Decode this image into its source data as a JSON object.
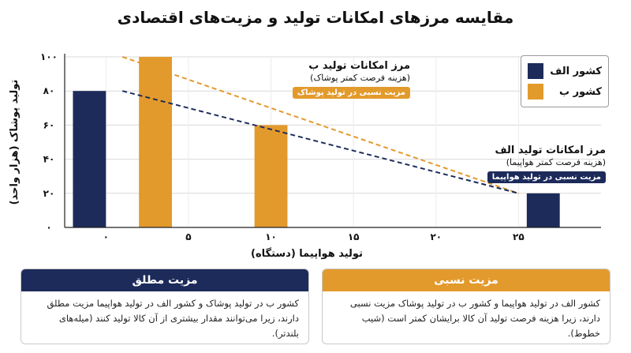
{
  "title": "مقایسه مرزهای امکانات تولید و مزیت‌های اقتصادی",
  "colors": {
    "country_a": "#1c2b5a",
    "country_b": "#e39a2c"
  },
  "legend": [
    {
      "label": "کشور الف",
      "color": "#1c2b5a"
    },
    {
      "label": "کشور ب",
      "color": "#e39a2c"
    }
  ],
  "annotations": {
    "b": {
      "title": "مرز امکانات تولید ب",
      "subtitle": "(هزینه فرصت کمتر پوشاک)",
      "tag": "مزیت نسبی در تولید پوشاک"
    },
    "a": {
      "title": "مرز امکانات تولید الف",
      "subtitle": "(هزینه فرصت کمتر هواپیما)",
      "tag": "مزیت نسبی در تولید هواپیما"
    }
  },
  "boxes": {
    "absolute": {
      "title": "مزیت مطلق",
      "text": "کشور ب در تولید پوشاک و کشور الف در تولید هواپیما مزیت مطلق دارند، زیرا می‌توانند مقدار بیشتری از آن کالا تولید کنند (میله‌های بلندتر)."
    },
    "comparative": {
      "title": "مزیت نسبی",
      "text": "کشور الف در تولید هواپیما و کشور ب در تولید پوشاک مزیت نسبی دارند، زیرا هزینه فرصت تولید آن کالا برایشان کمتر است (شیب خطوط)."
    }
  },
  "chart_data": {
    "type": "bar",
    "xlabel": "تولید هواپیما (دستگاه)",
    "ylabel": "تولید پوشاک (هزار واحد)",
    "x_ticks": [
      0,
      5,
      10,
      15,
      20,
      25
    ],
    "x_tick_labels": [
      "۰",
      "۵",
      "۱۰",
      "۱۵",
      "۲۰",
      "۲۵"
    ],
    "y_ticks": [
      0,
      20,
      40,
      60,
      80,
      100
    ],
    "y_tick_labels": [
      "۰",
      "۲۰",
      "۴۰",
      "۶۰",
      "۸۰",
      "۱۰۰"
    ],
    "xlim": [
      -2.5,
      30
    ],
    "ylim": [
      0,
      100
    ],
    "bar_width": 2,
    "series": [
      {
        "name": "کشور الف",
        "color": "#1c2b5a",
        "points": [
          {
            "x": -1,
            "y": 80
          },
          {
            "x": 26.5,
            "y": 20
          }
        ]
      },
      {
        "name": "کشور ب",
        "color": "#e39a2c",
        "points": [
          {
            "x": 3,
            "y": 100
          },
          {
            "x": 10,
            "y": 60
          }
        ]
      }
    ],
    "ppf_lines": [
      {
        "name": "مرز امکانات تولید ب",
        "color": "#e39a2c",
        "from": [
          1,
          100
        ],
        "to": [
          25,
          20
        ]
      },
      {
        "name": "مرز امکانات تولید الف",
        "color": "#1c2b5a",
        "from": [
          1,
          80
        ],
        "to": [
          25,
          20
        ]
      }
    ],
    "grid": true
  }
}
